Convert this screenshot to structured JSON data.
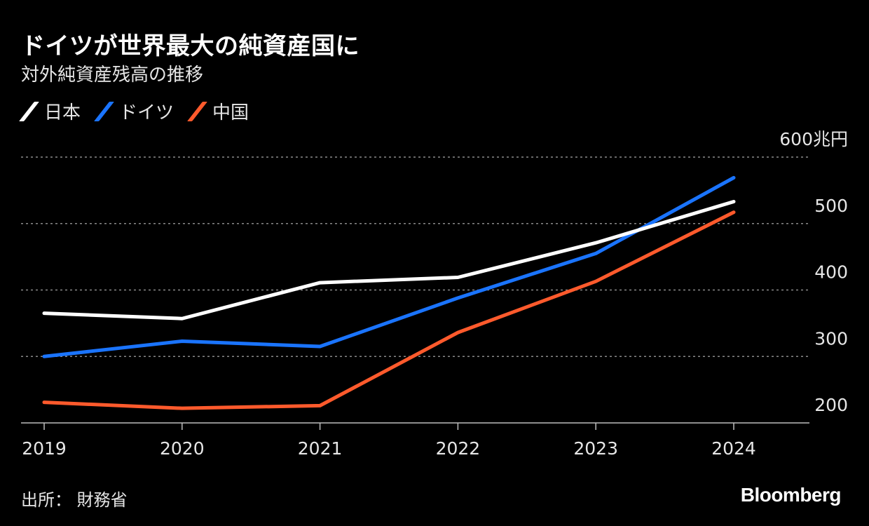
{
  "chart_data": {
    "type": "line",
    "title": "ドイツが世界最大の純資産国に",
    "subtitle": "対外純資産残高の推移",
    "x": [
      "2019",
      "2020",
      "2021",
      "2022",
      "2023",
      "2024"
    ],
    "ylim": [
      180,
      600
    ],
    "yticks": [
      200,
      300,
      400,
      500,
      600
    ],
    "ytick_labels": [
      "200",
      "300",
      "400",
      "500",
      "600兆円"
    ],
    "series": [
      {
        "name": "日本",
        "color": "#ffffff",
        "values": [
          365,
          357,
          411,
          419,
          471,
          533
        ]
      },
      {
        "name": "ドイツ",
        "color": "#1a74ff",
        "values": [
          300,
          323,
          315,
          388,
          455,
          569
        ]
      },
      {
        "name": "中国",
        "color": "#ff5a2c",
        "values": [
          231,
          222,
          226,
          336,
          413,
          517
        ]
      }
    ],
    "source": "出所： 財務省",
    "brand": "Bloomberg"
  }
}
